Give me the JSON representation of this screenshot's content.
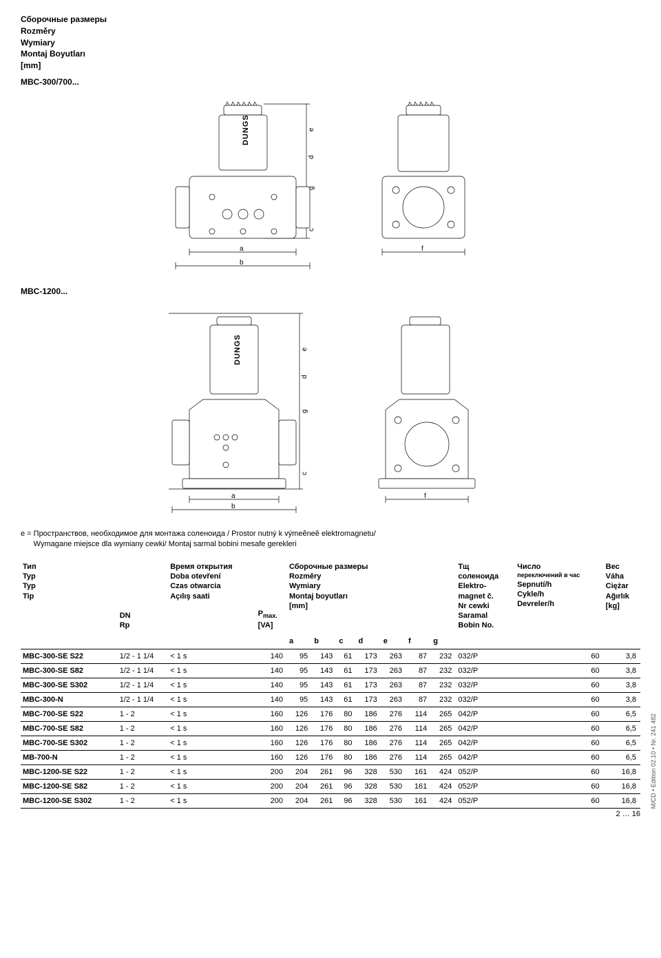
{
  "header": {
    "line1": "Сборочные размеры",
    "line2": "Rozměry",
    "line3": "Wymiary",
    "line4": "Montaj Boyutları",
    "line5": "[mm]"
  },
  "models": {
    "m1": "MBC-300/700...",
    "m2": "MBC-1200..."
  },
  "diagrams": {
    "brand": "DUNGS",
    "labels": {
      "a": "a",
      "b": "b",
      "c": "c",
      "d": "d",
      "e": "e",
      "f": "f",
      "g": "g"
    }
  },
  "footnote": {
    "prefix": "e = ",
    "l1": "Пространствов, необходимое для монтажа соленоида / Prostor nutný k výmeĕneĕ elektromagnetu/",
    "l2": "Wymagane miejsce dla wymiany cewki/ Montaj sarmal  bobini  mesafe  gerekleri"
  },
  "table": {
    "headers": {
      "type": {
        "l1": "Тип",
        "l2": "Typ",
        "l3": "Typ",
        "l4": "Tip"
      },
      "dn": {
        "l1": "DN",
        "l2": "Rp"
      },
      "open": {
        "l1": "Время открытия",
        "l2": "Doba otevření",
        "l3": "Czas otwarcia",
        "l4": "Açılış saati"
      },
      "pmax": {
        "l1": "P",
        "sub": "max.",
        "l2": "[VA]"
      },
      "dims": {
        "l1": "Сборочные размеры",
        "l2": "Rozměry",
        "l3": "Wymiary",
        "l4": "Montaj boyutları",
        "l5": "[mm]"
      },
      "a": "a",
      "b": "b",
      "c": "c",
      "d": "d",
      "e": "e",
      "f": "f",
      "g": "g",
      "solenoid": {
        "l1": "Тщ",
        "l2": "соленоида",
        "l3": "Elektro-",
        "l4": "magnet č.",
        "l5": "Nr cewki",
        "l6": "Saramal",
        "l7": "Bobin No."
      },
      "cycles": {
        "l1": "Число",
        "l2": "переключений в час",
        "l3": "Sepnutí/h",
        "l4": "Cykle/h",
        "l5": "Devreler/h"
      },
      "weight": {
        "l1": "Вес",
        "l2": "Váha",
        "l3": "Ciężar",
        "l4": "Ağırlık",
        "l5": "[kg]"
      }
    },
    "rows": [
      {
        "model": "MBC-300-SE S22",
        "dn": "1/2 - 1 1/4",
        "open": "< 1 s",
        "pmax": "140",
        "a": "95",
        "b": "143",
        "c": "61",
        "d": "173",
        "e": "263",
        "f": "87",
        "g": "232",
        "coil": "032/P",
        "cyc": "60",
        "kg": "3,8"
      },
      {
        "model": "MBC-300-SE S82",
        "dn": "1/2 - 1 1/4",
        "open": "< 1 s",
        "pmax": "140",
        "a": "95",
        "b": "143",
        "c": "61",
        "d": "173",
        "e": "263",
        "f": "87",
        "g": "232",
        "coil": "032/P",
        "cyc": "60",
        "kg": "3,8"
      },
      {
        "model": "MBC-300-SE S302",
        "dn": "1/2 - 1 1/4",
        "open": "< 1 s",
        "pmax": "140",
        "a": "95",
        "b": "143",
        "c": "61",
        "d": "173",
        "e": "263",
        "f": "87",
        "g": "232",
        "coil": "032/P",
        "cyc": "60",
        "kg": "3,8"
      },
      {
        "model": "MBC-300-N",
        "dn": "1/2 - 1 1/4",
        "open": "< 1 s",
        "pmax": "140",
        "a": "95",
        "b": "143",
        "c": "61",
        "d": "173",
        "e": "263",
        "f": "87",
        "g": "232",
        "coil": "032/P",
        "cyc": "60",
        "kg": "3,8"
      },
      {
        "model": "MBC-700-SE S22",
        "dn": "1 - 2",
        "open": "< 1 s",
        "pmax": "160",
        "a": "126",
        "b": "176",
        "c": "80",
        "d": "186",
        "e": "276",
        "f": "114",
        "g": "265",
        "coil": "042/P",
        "cyc": "60",
        "kg": "6,5"
      },
      {
        "model": "MBC-700-SE S82",
        "dn": "1 - 2",
        "open": "< 1 s",
        "pmax": "160",
        "a": "126",
        "b": "176",
        "c": "80",
        "d": "186",
        "e": "276",
        "f": "114",
        "g": "265",
        "coil": "042/P",
        "cyc": "60",
        "kg": "6,5"
      },
      {
        "model": "MBC-700-SE S302",
        "dn": "1 - 2",
        "open": "< 1 s",
        "pmax": "160",
        "a": "126",
        "b": "176",
        "c": "80",
        "d": "186",
        "e": "276",
        "f": "114",
        "g": "265",
        "coil": "042/P",
        "cyc": "60",
        "kg": "6,5"
      },
      {
        "model": "MB-700-N",
        "dn": "1 -  2",
        "open": "< 1 s",
        "pmax": "160",
        "a": "126",
        "b": "176",
        "c": "80",
        "d": "186",
        "e": "276",
        "f": "114",
        "g": "265",
        "coil": "042/P",
        "cyc": "60",
        "kg": "6,5"
      },
      {
        "model": "MBC-1200-SE S22",
        "dn": "1 -  2",
        "open": "< 1 s",
        "pmax": "200",
        "a": "204",
        "b": "261",
        "c": "96",
        "d": "328",
        "e": "530",
        "f": "161",
        "g": "424",
        "coil": "052/P",
        "cyc": "60",
        "kg": "16,8"
      },
      {
        "model": "MBC-1200-SE S82",
        "dn": "1 -  2",
        "open": "< 1 s",
        "pmax": "200",
        "a": "204",
        "b": "261",
        "c": "96",
        "d": "328",
        "e": "530",
        "f": "161",
        "g": "424",
        "coil": "052/P",
        "cyc": "60",
        "kg": "16,8"
      },
      {
        "model": "MBC-1200-SE S302",
        "dn": "1 -  2",
        "open": "< 1 s",
        "pmax": "200",
        "a": "204",
        "b": "261",
        "c": "96",
        "d": "328",
        "e": "530",
        "f": "161",
        "g": "424",
        "coil": "052/P",
        "cyc": "60",
        "kg": "16,8"
      }
    ]
  },
  "sidebar": "M/CD • Edition 02.10 • Nr. 241 482",
  "pagefoot": "2 … 16",
  "style": {
    "stroke": "#000000",
    "stroke_width": 0.7,
    "fill": "#ffffff",
    "hatched": "#cccccc",
    "fontsize_body": 12,
    "fontsize_table": 11
  }
}
